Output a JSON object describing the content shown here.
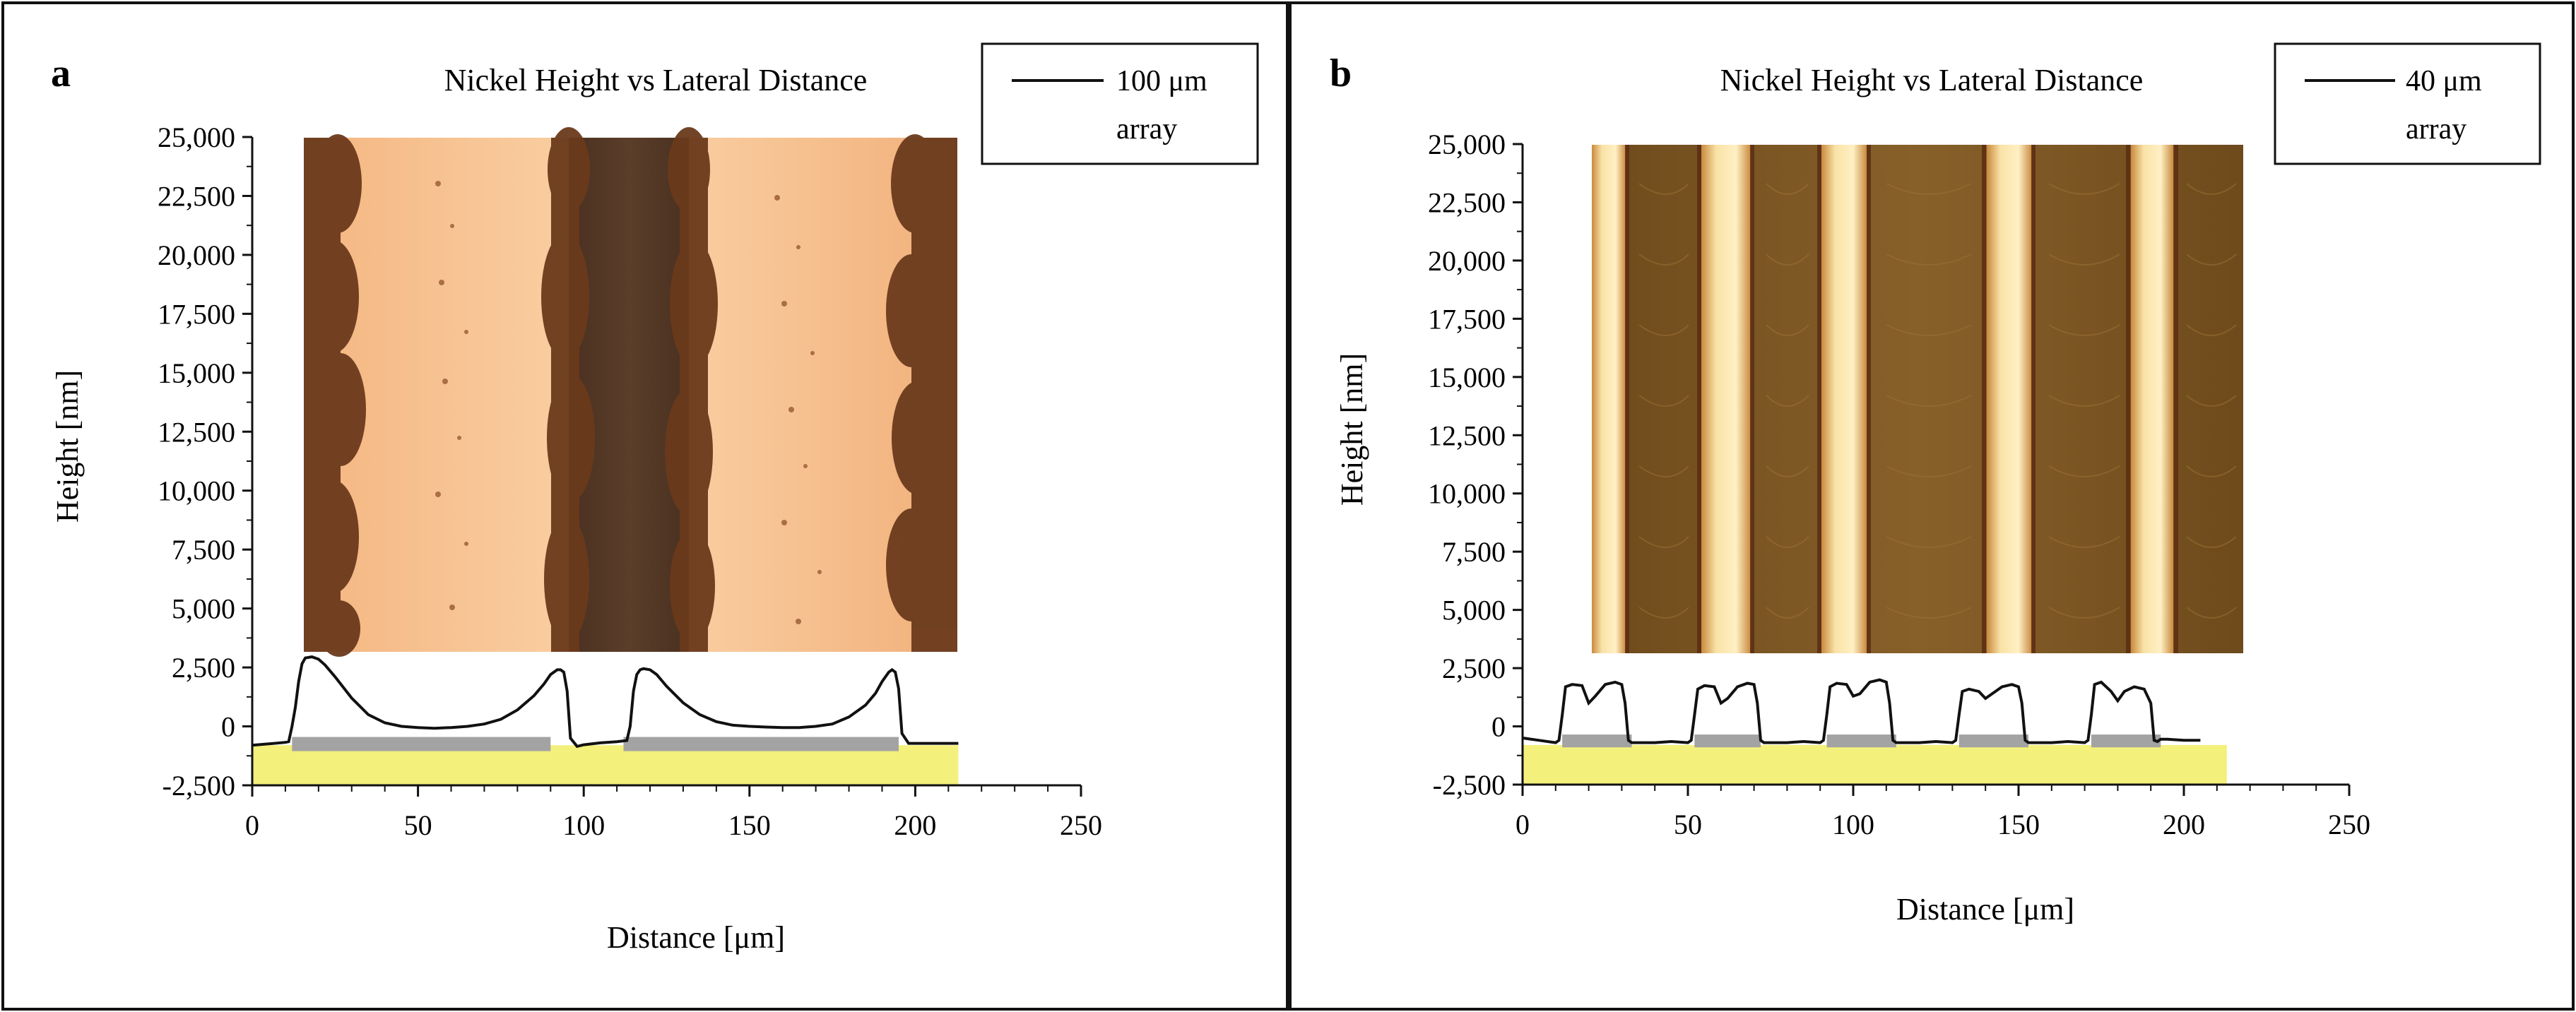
{
  "colors": {
    "frame": "#111111",
    "profile": "#111111",
    "substrate": "#f3f07c",
    "electrode": "#a3a3a3",
    "micro_light_a": "#f7c79a",
    "micro_dark_a": "#6b3a1c",
    "micro_track_a": "#4b3322",
    "micro_bg_b": "#7a5524",
    "micro_bright_b": "#f8dd9c",
    "micro_edge_b": "#d1a35a"
  },
  "chart_data": [
    {
      "type": "line",
      "panel_label": "a",
      "title": "Nickel Height vs Lateral Distance",
      "xlabel": "Distance [μm]",
      "ylabel": "Height [nm]",
      "xlim": [
        0,
        250
      ],
      "ylim": [
        -2500,
        25000
      ],
      "x_ticks": [
        0,
        50,
        100,
        150,
        200,
        250
      ],
      "y_ticks": [
        -2500,
        0,
        2500,
        5000,
        7500,
        10000,
        12500,
        15000,
        17500,
        20000,
        22500,
        25000
      ],
      "x_tick_labels": [
        "0",
        "50",
        "100",
        "150",
        "200",
        "250"
      ],
      "y_tick_labels": [
        "-2,500",
        "0",
        "2,500",
        "5,000",
        "7,500",
        "10,000",
        "12,500",
        "15,000",
        "17,500",
        "20,000",
        "22,500",
        "25,000"
      ],
      "legend": {
        "label_line1": "100 μm",
        "label_line2": "array",
        "position": "top-right"
      },
      "grid": false,
      "series": [
        {
          "name": "100 μm array",
          "x": [
            0,
            10,
            11,
            12,
            13,
            14,
            15,
            16,
            18,
            20,
            22,
            25,
            30,
            35,
            40,
            45,
            50,
            55,
            60,
            65,
            70,
            75,
            80,
            85,
            88,
            90,
            92,
            93,
            94,
            95,
            96,
            98,
            100,
            105,
            110,
            113,
            114,
            115,
            116,
            117,
            118,
            120,
            122,
            125,
            130,
            135,
            140,
            145,
            150,
            155,
            160,
            165,
            170,
            175,
            180,
            185,
            188,
            190,
            192,
            193,
            194,
            195,
            196,
            198,
            200,
            205,
            210,
            213
          ],
          "values": [
            -800,
            -680,
            -650,
            0,
            800,
            1900,
            2650,
            2900,
            2950,
            2850,
            2600,
            2100,
            1200,
            500,
            150,
            0,
            -50,
            -80,
            -50,
            0,
            100,
            300,
            700,
            1300,
            1800,
            2200,
            2400,
            2400,
            2300,
            1500,
            -500,
            -850,
            -780,
            -700,
            -650,
            -600,
            0,
            1500,
            2200,
            2400,
            2450,
            2400,
            2200,
            1700,
            1000,
            500,
            200,
            50,
            0,
            -30,
            -50,
            -50,
            0,
            100,
            400,
            900,
            1400,
            1900,
            2300,
            2400,
            2300,
            1600,
            -300,
            -720,
            -720,
            -720,
            -720,
            -720
          ]
        }
      ],
      "annotations": {
        "micrograph": "inset optical micrograph of the 100 μm nickel line array",
        "substrate_band_y": [
          -2500,
          -800
        ],
        "substrate_band_x": [
          0,
          213
        ],
        "electrode_segments_x": [
          [
            12,
            90
          ],
          [
            112,
            195
          ]
        ],
        "electrode_segments_y": [
          -1050,
          -450
        ]
      }
    },
    {
      "type": "line",
      "panel_label": "b",
      "title": "Nickel Height vs Lateral Distance",
      "xlabel": "Distance [μm]",
      "ylabel": "Height [nm]",
      "xlim": [
        0,
        250
      ],
      "ylim": [
        -2500,
        25000
      ],
      "x_ticks": [
        0,
        50,
        100,
        150,
        200,
        250
      ],
      "y_ticks": [
        -2500,
        0,
        2500,
        5000,
        7500,
        10000,
        12500,
        15000,
        17500,
        20000,
        22500,
        25000
      ],
      "x_tick_labels": [
        "0",
        "50",
        "100",
        "150",
        "200",
        "250"
      ],
      "y_tick_labels": [
        "-2,500",
        "0",
        "2,500",
        "5,000",
        "7,500",
        "10,000",
        "12,500",
        "15,000",
        "17,500",
        "20,000",
        "22,500",
        "25,000"
      ],
      "legend": {
        "label_line1": "40 μm",
        "label_line2": "array",
        "position": "top-right"
      },
      "grid": false,
      "series": [
        {
          "name": "40 μm array",
          "x": [
            0,
            5,
            10,
            11,
            12,
            13,
            15,
            18,
            20,
            22,
            25,
            28,
            30,
            31,
            32,
            33,
            35,
            40,
            45,
            50,
            51,
            52,
            53,
            55,
            58,
            60,
            62,
            65,
            68,
            70,
            71,
            72,
            73,
            75,
            80,
            85,
            90,
            91,
            92,
            93,
            95,
            98,
            100,
            102,
            105,
            108,
            110,
            111,
            112,
            113,
            115,
            120,
            125,
            130,
            131,
            132,
            133,
            135,
            138,
            140,
            142,
            145,
            148,
            150,
            151,
            152,
            153,
            155,
            160,
            165,
            170,
            171,
            172,
            173,
            175,
            178,
            180,
            182,
            185,
            188,
            190,
            191,
            192,
            193,
            195,
            200,
            205
          ],
          "values": [
            -500,
            -600,
            -700,
            -600,
            500,
            1700,
            1800,
            1750,
            1000,
            1300,
            1800,
            1900,
            1800,
            1000,
            -600,
            -700,
            -700,
            -700,
            -650,
            -700,
            -600,
            500,
            1600,
            1750,
            1700,
            1000,
            1200,
            1700,
            1850,
            1800,
            1000,
            -600,
            -700,
            -700,
            -700,
            -650,
            -700,
            -600,
            500,
            1700,
            1850,
            1800,
            1300,
            1400,
            1900,
            2000,
            1900,
            1000,
            -600,
            -700,
            -700,
            -700,
            -650,
            -700,
            -600,
            500,
            1500,
            1600,
            1500,
            1200,
            1400,
            1700,
            1800,
            1700,
            1000,
            -600,
            -700,
            -700,
            -700,
            -650,
            -700,
            -600,
            500,
            1800,
            1900,
            1500,
            1100,
            1500,
            1700,
            1600,
            1000,
            -600,
            -650,
            -550,
            -550,
            -600,
            -600
          ]
        }
      ],
      "annotations": {
        "micrograph": "inset optical micrograph of the 40 μm nickel line array",
        "substrate_band_y": [
          -2500,
          -800
        ],
        "substrate_band_x": [
          0,
          213
        ],
        "electrode_segments_x": [
          [
            12,
            33
          ],
          [
            52,
            72
          ],
          [
            92,
            113
          ],
          [
            132,
            153
          ],
          [
            172,
            193
          ]
        ],
        "electrode_segments_y": [
          -900,
          -350
        ]
      }
    }
  ]
}
